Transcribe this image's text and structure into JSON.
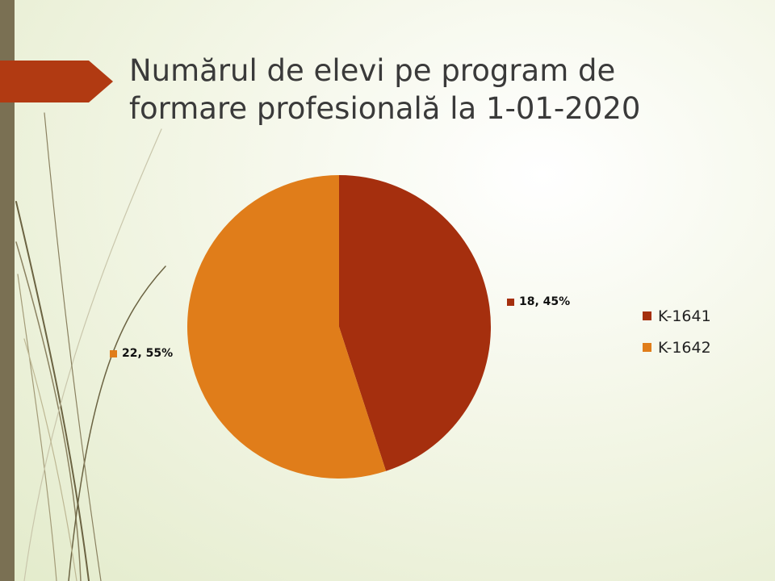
{
  "slide": {
    "title_lines": [
      "Numărul de elevi pe program de",
      "formare profesională la 1-01-2020"
    ]
  },
  "chart_data": {
    "type": "pie",
    "title": "Numărul de elevi pe program de formare profesională la 1-01-2020",
    "slices": [
      {
        "name": "K-1641",
        "value": 18,
        "percent": 45,
        "label": "18, 45%",
        "color": "#a52f0e"
      },
      {
        "name": "K-1642",
        "value": 22,
        "percent": 55,
        "label": "22, 55%",
        "color": "#e07d1a"
      }
    ],
    "legend_position": "right"
  },
  "colors": {
    "accent_arrow": "#b13a12",
    "side_bar": "#7a7053",
    "title_text": "#3a3a3a"
  }
}
